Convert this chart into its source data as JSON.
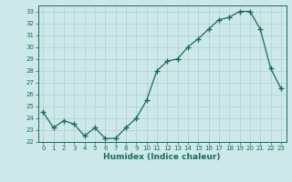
{
  "x": [
    0,
    1,
    2,
    3,
    4,
    5,
    6,
    7,
    8,
    9,
    10,
    11,
    12,
    13,
    14,
    15,
    16,
    17,
    18,
    19,
    20,
    21,
    22,
    23
  ],
  "y": [
    24.5,
    23.2,
    23.8,
    23.5,
    22.5,
    23.2,
    22.3,
    22.3,
    23.2,
    24.0,
    25.5,
    28.0,
    28.8,
    29.0,
    30.0,
    30.7,
    31.5,
    32.3,
    32.5,
    33.0,
    33.0,
    31.5,
    28.2,
    26.5
  ],
  "xlim": [
    -0.5,
    23.5
  ],
  "ylim": [
    22,
    33.5
  ],
  "yticks": [
    22,
    23,
    24,
    25,
    26,
    27,
    28,
    29,
    30,
    31,
    32,
    33
  ],
  "xticks": [
    0,
    1,
    2,
    3,
    4,
    5,
    6,
    7,
    8,
    9,
    10,
    11,
    12,
    13,
    14,
    15,
    16,
    17,
    18,
    19,
    20,
    21,
    22,
    23
  ],
  "xlabel": "Humidex (Indice chaleur)",
  "line_color": "#1a6b5a",
  "marker": "D",
  "marker_size": 2.0,
  "bg_color": "#cce8e8",
  "grid_color": "#b0cfcf",
  "title": ""
}
